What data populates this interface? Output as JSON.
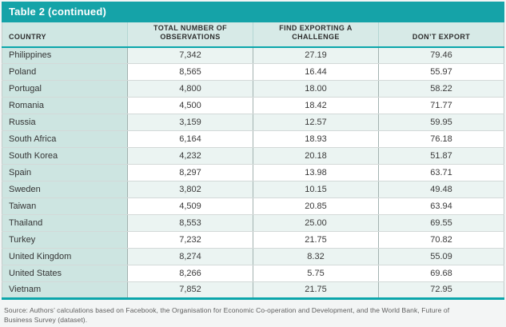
{
  "colors": {
    "accent_teal": "#15a3a8",
    "header_row_bg": "#d7eae7",
    "country_column_bg": "#cde5e1",
    "striped_row_bg": "#ebf4f2"
  },
  "title": "Table 2 (continued)",
  "table": {
    "columns": [
      "COUNTRY",
      "TOTAL NUMBER OF OBSERVATIONS",
      "FIND EXPORTING A CHALLENGE",
      "DON’T EXPORT"
    ],
    "rows": [
      {
        "country": "Philippines",
        "observations": "7,342",
        "challenge": "27.19",
        "dont_export": "79.46"
      },
      {
        "country": "Poland",
        "observations": "8,565",
        "challenge": "16.44",
        "dont_export": "55.97"
      },
      {
        "country": "Portugal",
        "observations": "4,800",
        "challenge": "18.00",
        "dont_export": "58.22"
      },
      {
        "country": "Romania",
        "observations": "4,500",
        "challenge": "18.42",
        "dont_export": "71.77"
      },
      {
        "country": "Russia",
        "observations": "3,159",
        "challenge": "12.57",
        "dont_export": "59.95"
      },
      {
        "country": "South Africa",
        "observations": "6,164",
        "challenge": "18.93",
        "dont_export": "76.18"
      },
      {
        "country": "South Korea",
        "observations": "4,232",
        "challenge": "20.18",
        "dont_export": "51.87"
      },
      {
        "country": "Spain",
        "observations": "8,297",
        "challenge": "13.98",
        "dont_export": "63.71"
      },
      {
        "country": "Sweden",
        "observations": "3,802",
        "challenge": "10.15",
        "dont_export": "49.48"
      },
      {
        "country": "Taiwan",
        "observations": "4,509",
        "challenge": "20.85",
        "dont_export": "63.94"
      },
      {
        "country": "Thailand",
        "observations": "8,553",
        "challenge": "25.00",
        "dont_export": "69.55"
      },
      {
        "country": "Turkey",
        "observations": "7,232",
        "challenge": "21.75",
        "dont_export": "70.82"
      },
      {
        "country": "United Kingdom",
        "observations": "8,274",
        "challenge": "8.32",
        "dont_export": "55.09"
      },
      {
        "country": "United States",
        "observations": "8,266",
        "challenge": "5.75",
        "dont_export": "69.68"
      },
      {
        "country": "Vietnam",
        "observations": "7,852",
        "challenge": "21.75",
        "dont_export": "72.95"
      }
    ]
  },
  "source": {
    "line1": "Source: Authors’ calculations based on Facebook, the Organisation for Economic Co-operation and Development, and the World Bank, Future of",
    "line2": "Business Survey (dataset)."
  }
}
